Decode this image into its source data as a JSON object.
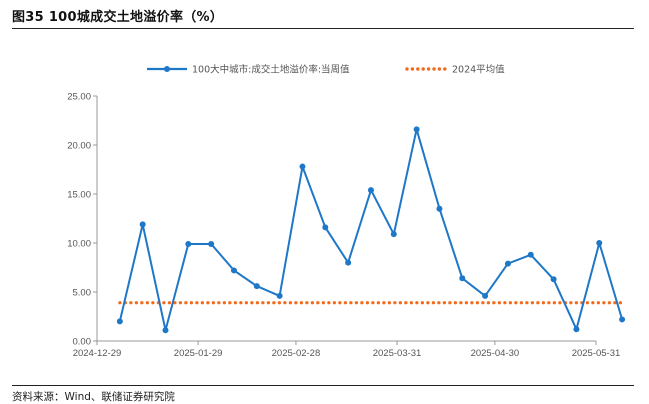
{
  "figure": {
    "title": "图35 100城成交土地溢价率（%）",
    "source": "资料来源：Wind、联储证券研究院"
  },
  "colors": {
    "series": "#1f77c8",
    "average": "#f26b1d",
    "axis": "#999999",
    "text": "#555555"
  },
  "chart_data": {
    "type": "line",
    "title": "图35 100城成交土地溢价率（%）",
    "xlabel": "",
    "ylabel": "",
    "ylim": [
      0,
      25
    ],
    "yticks": [
      "0.00",
      "5.00",
      "10.00",
      "15.00",
      "20.00",
      "25.00"
    ],
    "xticks": [
      "2024-12-29",
      "2025-01-29",
      "2025-02-28",
      "2025-03-31",
      "2025-04-30",
      "2025-05-31"
    ],
    "xrange": [
      "2024-12-29",
      "2025-05-31"
    ],
    "grid": false,
    "legend_position": "top",
    "series": [
      {
        "name": "100大中城市:成交土地溢价率:当周值",
        "style": "line-with-markers",
        "x": [
          "2025-01-05",
          "2025-01-12",
          "2025-01-19",
          "2025-01-26",
          "2025-02-02",
          "2025-02-09",
          "2025-02-16",
          "2025-02-23",
          "2025-03-02",
          "2025-03-09",
          "2025-03-16",
          "2025-03-23",
          "2025-03-30",
          "2025-04-06",
          "2025-04-13",
          "2025-04-20",
          "2025-04-27",
          "2025-05-04",
          "2025-05-11",
          "2025-05-18",
          "2025-05-25",
          "2025-06-01",
          "2025-06-08"
        ],
        "values": [
          2.0,
          11.9,
          1.1,
          9.9,
          9.9,
          7.2,
          5.6,
          4.6,
          17.8,
          11.6,
          8.0,
          15.4,
          10.9,
          21.6,
          13.5,
          6.4,
          4.6,
          7.9,
          8.8,
          6.3,
          1.2,
          10.0,
          2.2
        ]
      },
      {
        "name": "2024平均值",
        "style": "dotted",
        "x": [
          "2025-01-05",
          "2025-06-08"
        ],
        "values": [
          3.9,
          3.9
        ]
      }
    ]
  }
}
